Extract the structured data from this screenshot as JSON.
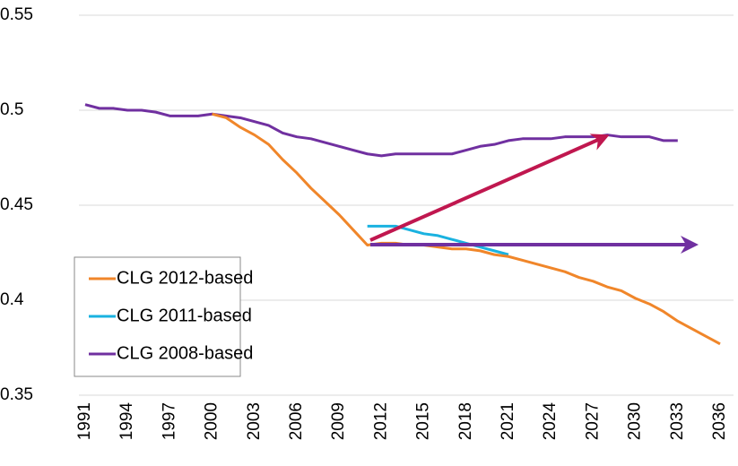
{
  "chart_data": {
    "type": "line",
    "x": [
      1991,
      1992,
      1993,
      1994,
      1995,
      1996,
      1997,
      1998,
      1999,
      2000,
      2001,
      2002,
      2003,
      2004,
      2005,
      2006,
      2007,
      2008,
      2009,
      2010,
      2011,
      2012,
      2013,
      2014,
      2015,
      2016,
      2017,
      2018,
      2019,
      2020,
      2021,
      2022,
      2023,
      2024,
      2025,
      2026,
      2027,
      2028,
      2029,
      2030,
      2031,
      2032,
      2033,
      2034,
      2035,
      2036
    ],
    "xlim": [
      1991,
      2036
    ],
    "xticks": [
      1991,
      1994,
      1997,
      2000,
      2003,
      2006,
      2009,
      2012,
      2015,
      2018,
      2021,
      2024,
      2027,
      2030,
      2033,
      2036
    ],
    "ylim": [
      0.35,
      0.55
    ],
    "yticks": [
      0.35,
      0.4,
      0.45,
      0.5,
      0.55
    ],
    "grid": true,
    "legend": "lower left",
    "series": [
      {
        "name": "CLG 2012-based",
        "color": "#f0862a",
        "values": [
          null,
          null,
          null,
          null,
          null,
          null,
          null,
          null,
          null,
          0.498,
          0.496,
          0.491,
          0.487,
          0.482,
          0.474,
          0.467,
          0.459,
          0.452,
          0.445,
          0.437,
          0.429,
          0.43,
          0.43,
          0.429,
          0.429,
          0.428,
          0.427,
          0.427,
          0.426,
          0.424,
          0.423,
          0.421,
          0.419,
          0.417,
          0.415,
          0.412,
          0.41,
          0.407,
          0.405,
          0.401,
          0.398,
          0.394,
          0.389,
          0.385,
          0.381,
          0.377
        ]
      },
      {
        "name": "CLG 2011-based",
        "color": "#1ab2e0",
        "values": [
          null,
          null,
          null,
          null,
          null,
          null,
          null,
          null,
          null,
          null,
          null,
          null,
          null,
          null,
          null,
          null,
          null,
          null,
          null,
          null,
          0.439,
          0.439,
          0.439,
          0.437,
          0.435,
          0.434,
          0.432,
          0.43,
          0.428,
          0.426,
          0.424,
          null,
          null,
          null,
          null,
          null,
          null,
          null,
          null,
          null,
          null,
          null,
          null,
          null,
          null,
          null
        ]
      },
      {
        "name": "CLG 2008-based",
        "color": "#7030a0",
        "values": [
          0.503,
          0.501,
          0.501,
          0.5,
          0.5,
          0.499,
          0.497,
          0.497,
          0.497,
          0.498,
          0.497,
          0.496,
          0.494,
          0.492,
          0.488,
          0.486,
          0.485,
          0.483,
          0.481,
          0.479,
          0.477,
          0.476,
          0.477,
          0.477,
          0.477,
          0.477,
          0.477,
          0.479,
          0.481,
          0.482,
          0.484,
          0.485,
          0.485,
          0.485,
          0.486,
          0.486,
          0.486,
          0.487,
          0.486,
          0.486,
          0.486,
          0.484,
          0.484,
          null,
          null,
          null
        ]
      }
    ]
  }
}
